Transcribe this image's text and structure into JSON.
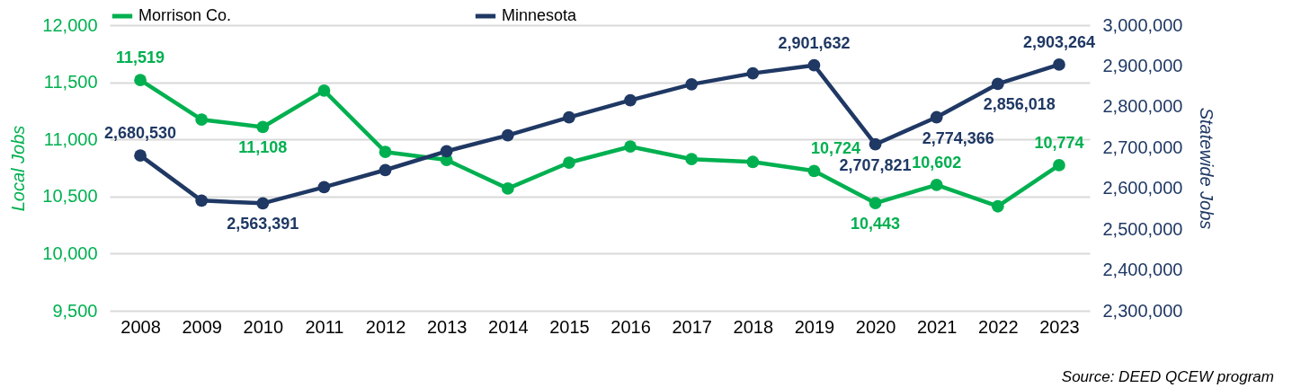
{
  "chart_data": {
    "type": "line",
    "ylabel": "Local Jobs",
    "y2label": "Statewide Jobs",
    "annotations": [
      "Source: DEED QCEW program"
    ],
    "categories": [
      "2008",
      "2009",
      "2010",
      "2011",
      "2012",
      "2013",
      "2014",
      "2015",
      "2016",
      "2017",
      "2018",
      "2019",
      "2020",
      "2021",
      "2022",
      "2023"
    ],
    "series": [
      {
        "name": "Morrison Co.",
        "color": "#00b050",
        "values": [
          11519,
          11173,
          11108,
          11427,
          10890,
          10820,
          10570,
          10797,
          10937,
          10827,
          10803,
          10724,
          10443,
          10602,
          10414,
          10774
        ],
        "value_labels": [
          "11,519",
          null,
          "11,108",
          null,
          null,
          null,
          null,
          null,
          null,
          null,
          null,
          "10,724",
          "10,443",
          "10,602",
          null,
          "10,774"
        ]
      },
      {
        "name": "Minnesota",
        "color": "#1f3864",
        "axis": "y2",
        "values": [
          2680530,
          2570000,
          2563391,
          2603000,
          2645000,
          2691000,
          2730000,
          2774000,
          2816000,
          2855000,
          2882000,
          2901632,
          2707821,
          2774366,
          2856018,
          2903264
        ],
        "value_labels": [
          "2,680,530",
          null,
          "2,563,391",
          null,
          null,
          null,
          null,
          null,
          null,
          null,
          null,
          "2,901,632",
          "2,707,821",
          "2,774,366",
          "2,856,018",
          "2,903,264"
        ]
      }
    ],
    "ylim": [
      9500,
      12000
    ],
    "yticks": [
      {
        "value": 9500,
        "label": "9,500"
      },
      {
        "value": 10000,
        "label": "10,000"
      },
      {
        "value": 10500,
        "label": "10,500"
      },
      {
        "value": 11000,
        "label": "11,000"
      },
      {
        "value": 11500,
        "label": "11,500"
      },
      {
        "value": 12000,
        "label": "12,000"
      }
    ],
    "y2lim": [
      2300000,
      3000000
    ],
    "y2ticks": [
      {
        "value": 2300000,
        "label": "2,300,000"
      },
      {
        "value": 2400000,
        "label": "2,400,000"
      },
      {
        "value": 2500000,
        "label": "2,500,000"
      },
      {
        "value": 2600000,
        "label": "2,600,000"
      },
      {
        "value": 2700000,
        "label": "2,700,000"
      },
      {
        "value": 2800000,
        "label": "2,800,000"
      },
      {
        "value": 2900000,
        "label": "2,900,000"
      },
      {
        "value": 3000000,
        "label": "3,000,000"
      }
    ],
    "grid": "y",
    "legend": "top",
    "marker": "circle",
    "line_style": "solid"
  }
}
